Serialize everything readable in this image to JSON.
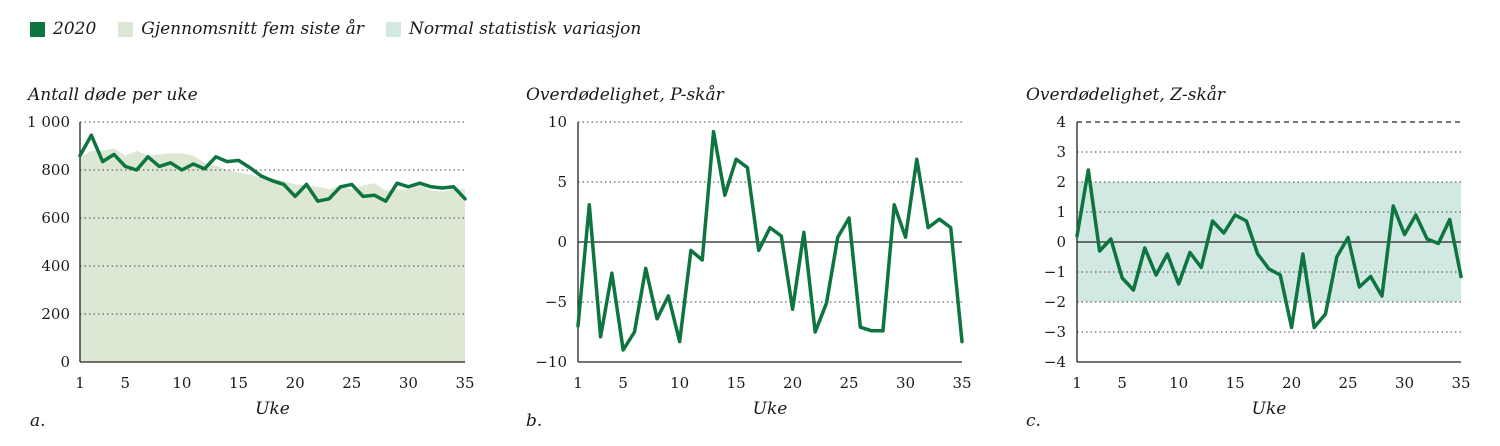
{
  "colors": {
    "line": "#0e7440",
    "avg": "#dce8d4",
    "band": "#d2e8e2"
  },
  "legend": [
    {
      "label": "2020",
      "color": "#0e7440"
    },
    {
      "label": "Gjennomsnitt fem siste år",
      "color": "#dce8d4"
    },
    {
      "label": "Normal statistisk variasjon",
      "color": "#d2e8e2"
    }
  ],
  "chart_data": [
    {
      "type": "area+line",
      "panel": "a.",
      "title": "Antall døde per uke",
      "xlabel": "Uke",
      "ylim": [
        0,
        1000
      ],
      "yticks": [
        0,
        200,
        400,
        600,
        800,
        1000
      ],
      "ytick_labels": [
        "0",
        "200",
        "400",
        "600",
        "800",
        "1 000"
      ],
      "xlim": [
        1,
        35
      ],
      "xticks": [
        1,
        5,
        10,
        15,
        20,
        25,
        30,
        35
      ],
      "series": [
        {
          "name": "2020",
          "x": [
            1,
            2,
            3,
            4,
            5,
            6,
            7,
            8,
            9,
            10,
            11,
            12,
            13,
            14,
            15,
            16,
            17,
            18,
            19,
            20,
            21,
            22,
            23,
            24,
            25,
            26,
            27,
            28,
            29,
            30,
            31,
            32,
            33,
            34,
            35
          ],
          "values": [
            860,
            945,
            835,
            865,
            815,
            800,
            855,
            815,
            830,
            800,
            825,
            805,
            855,
            835,
            840,
            810,
            775,
            755,
            740,
            690,
            740,
            670,
            680,
            730,
            740,
            690,
            695,
            670,
            745,
            730,
            745,
            730,
            725,
            730,
            680
          ]
        },
        {
          "name": "Gjennomsnitt fem siste år",
          "x": [
            1,
            2,
            3,
            4,
            5,
            6,
            7,
            8,
            9,
            10,
            11,
            12,
            13,
            14,
            15,
            16,
            17,
            18,
            19,
            20,
            21,
            22,
            23,
            24,
            25,
            26,
            27,
            28,
            29,
            30,
            31,
            32,
            33,
            34,
            35
          ],
          "values": [
            850,
            880,
            880,
            890,
            860,
            880,
            860,
            865,
            870,
            870,
            860,
            830,
            820,
            800,
            790,
            780,
            770,
            765,
            755,
            740,
            735,
            730,
            720,
            735,
            720,
            735,
            745,
            715,
            720,
            720,
            735,
            715,
            710,
            720,
            720
          ]
        }
      ]
    },
    {
      "type": "line",
      "panel": "b.",
      "title": "Overdødelighet, P-skår",
      "xlabel": "Uke",
      "ylim": [
        -10,
        10
      ],
      "yticks": [
        -10,
        -5,
        0,
        5,
        10
      ],
      "ytick_labels": [
        "−10",
        "−5",
        "0",
        "5",
        "10"
      ],
      "xlim": [
        1,
        35
      ],
      "xticks": [
        1,
        5,
        10,
        15,
        20,
        25,
        30,
        35
      ],
      "series": [
        {
          "name": "2020",
          "x": [
            1,
            2,
            3,
            4,
            5,
            6,
            7,
            8,
            9,
            10,
            11,
            12,
            13,
            14,
            15,
            16,
            17,
            18,
            19,
            20,
            21,
            22,
            23,
            24,
            25,
            26,
            27,
            28,
            29,
            30,
            31,
            32,
            33,
            34,
            35
          ],
          "values": [
            -7,
            3.1,
            -7.9,
            -2.6,
            -9,
            -7.5,
            -2.2,
            -6.4,
            -4.5,
            -8.3,
            -0.7,
            -1.5,
            9.2,
            3.9,
            6.9,
            6.2,
            -0.7,
            1.2,
            0.5,
            -5.6,
            0.8,
            -7.5,
            -5.1,
            0.4,
            2,
            -7.1,
            -7.4,
            -7.4,
            3.1,
            0.4,
            6.9,
            1.2,
            1.9,
            1.2,
            -8.3
          ]
        }
      ]
    },
    {
      "type": "line",
      "panel": "c.",
      "title": "Overdødelighet, Z-skår",
      "xlabel": "Uke",
      "ylim": [
        -4,
        4
      ],
      "yticks": [
        -4,
        -3,
        -2,
        -1,
        0,
        1,
        2,
        3,
        4
      ],
      "ytick_labels": [
        "−4",
        "−3",
        "−2",
        "−1",
        "0",
        "1",
        "2",
        "3",
        "4"
      ],
      "xlim": [
        1,
        35
      ],
      "xticks": [
        1,
        5,
        10,
        15,
        20,
        25,
        30,
        35
      ],
      "band": [
        -2,
        2
      ],
      "series": [
        {
          "name": "2020",
          "x": [
            1,
            2,
            3,
            4,
            5,
            6,
            7,
            8,
            9,
            10,
            11,
            12,
            13,
            14,
            15,
            16,
            17,
            18,
            19,
            20,
            21,
            22,
            23,
            24,
            25,
            26,
            27,
            28,
            29,
            30,
            31,
            32,
            33,
            34,
            35
          ],
          "values": [
            0.2,
            2.4,
            -0.3,
            0.1,
            -1.2,
            -1.6,
            -0.2,
            -1.1,
            -0.4,
            -1.4,
            -0.35,
            -0.85,
            0.7,
            0.3,
            0.9,
            0.7,
            -0.4,
            -0.9,
            -1.1,
            -2.85,
            -0.4,
            -2.85,
            -2.4,
            -0.5,
            0.15,
            -1.5,
            -1.15,
            -1.8,
            1.2,
            0.25,
            0.9,
            0.1,
            -0.05,
            0.75,
            -1.15
          ]
        }
      ]
    }
  ]
}
